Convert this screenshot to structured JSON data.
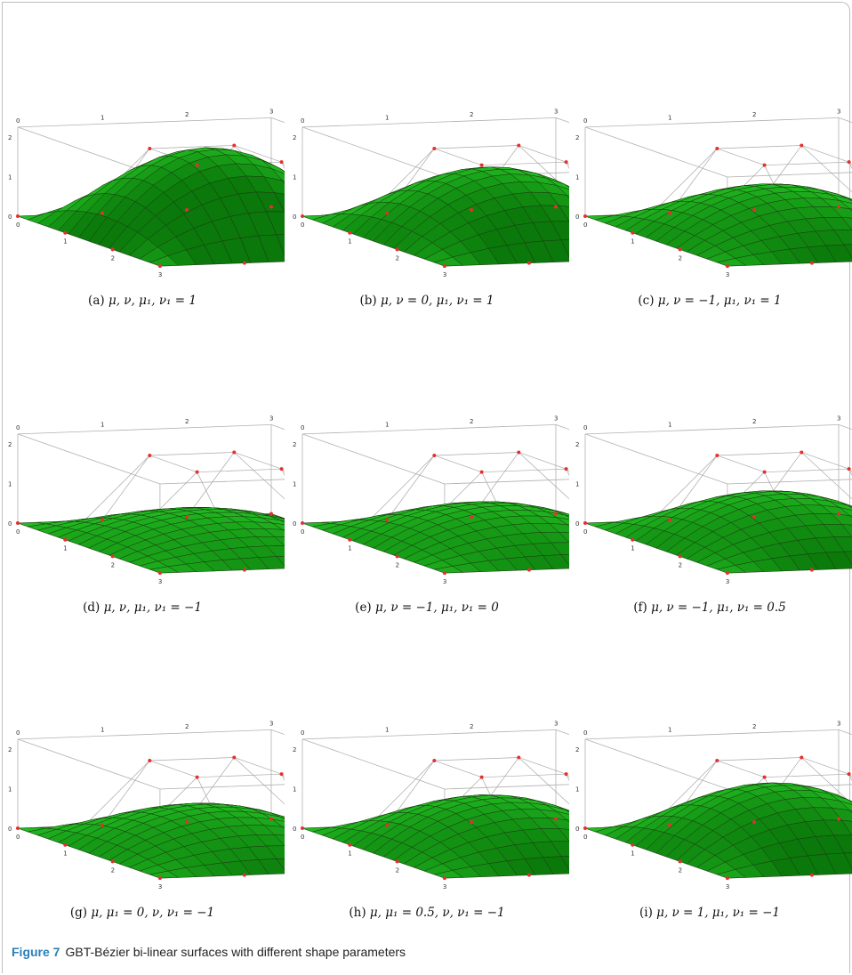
{
  "figure": {
    "label": "Figure 7",
    "caption": "GBT-Bézier bi-linear surfaces with different shape parameters"
  },
  "panels": [
    {
      "id": "a",
      "label": "(a)",
      "params": "μ, ν, μ₁, ν₁ = 1",
      "peak": 2.2
    },
    {
      "id": "b",
      "label": "(b)",
      "params": "μ, ν = 0, μ₁, ν₁ = 1",
      "peak": 1.7
    },
    {
      "id": "c",
      "label": "(c)",
      "params": "μ, ν = −1, μ₁, ν₁ = 1",
      "peak": 1.25
    },
    {
      "id": "d",
      "label": "(d)",
      "params": "μ, ν, μ₁, ν₁ = −1",
      "peak": 0.78
    },
    {
      "id": "e",
      "label": "(e)",
      "params": "μ, ν = −1, μ₁, ν₁ = 0",
      "peak": 0.95
    },
    {
      "id": "f",
      "label": "(f)",
      "params": "μ, ν = −1, μ₁, ν₁ = 0.5",
      "peak": 1.25
    },
    {
      "id": "g",
      "label": "(g)",
      "params": "μ, μ₁ = 0, ν, ν₁ = −1",
      "peak": 1.05
    },
    {
      "id": "h",
      "label": "(h)",
      "params": "μ, μ₁ = 0.5, ν, ν₁ = −1",
      "peak": 1.28
    },
    {
      "id": "i",
      "label": "(i)",
      "params": "μ, ν = 1, μ₁, ν₁ = −1",
      "peak": 1.6
    }
  ],
  "axis_ticks": {
    "back": [
      "0",
      "1",
      "2",
      "3"
    ],
    "front": [
      "0",
      "1",
      "2",
      "3"
    ],
    "z": [
      "0",
      "1",
      "2"
    ]
  },
  "colors": {
    "surface": "#22d522",
    "mesh": "#1a3a10",
    "control_point": "#e43030",
    "control_line": "#a9a9a9",
    "box": "#b0b0b0"
  }
}
